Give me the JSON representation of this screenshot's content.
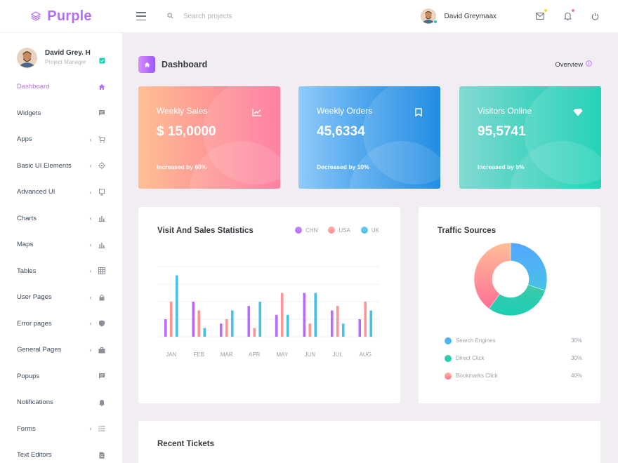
{
  "brand": {
    "name": "Purple",
    "color": "#b66dff"
  },
  "navbar": {
    "search_placeholder": "Search projects",
    "profile_name": "David Greymaax"
  },
  "sidebar": {
    "user": {
      "name": "David Grey. H",
      "role": "Project Manager"
    },
    "items": [
      {
        "label": "Dashboard",
        "icon": "home-icon",
        "arrow": false,
        "active": true
      },
      {
        "label": "Widgets",
        "icon": "chat-icon",
        "arrow": false
      },
      {
        "label": "Apps",
        "icon": "cart-icon",
        "arrow": true
      },
      {
        "label": "Basic UI Elements",
        "icon": "crosshair-icon",
        "arrow": true
      },
      {
        "label": "Advanced UI",
        "icon": "monitor-icon",
        "arrow": true
      },
      {
        "label": "Charts",
        "icon": "bar-chart-icon",
        "arrow": true
      },
      {
        "label": "Maps",
        "icon": "bar-chart-icon",
        "arrow": true
      },
      {
        "label": "Tables",
        "icon": "table-icon",
        "arrow": true
      },
      {
        "label": "User Pages",
        "icon": "lock-icon",
        "arrow": true
      },
      {
        "label": "Error pages",
        "icon": "shield-icon",
        "arrow": true
      },
      {
        "label": "General Pages",
        "icon": "briefcase-icon",
        "arrow": true
      },
      {
        "label": "Popups",
        "icon": "chat-icon",
        "arrow": false
      },
      {
        "label": "Notifications",
        "icon": "bell-icon",
        "arrow": false
      },
      {
        "label": "Forms",
        "icon": "list-icon",
        "arrow": true
      },
      {
        "label": "Text Editors",
        "icon": "document-icon",
        "arrow": false
      }
    ]
  },
  "header": {
    "title": "Dashboard",
    "overview": "Overview"
  },
  "stats": [
    {
      "title": "Weekly Sales",
      "value": "$ 15,0000",
      "note": "Increased by 60%",
      "icon": "trending-icon"
    },
    {
      "title": "Weekly Orders",
      "value": "45,6334",
      "note": "Decreased by 10%",
      "icon": "bookmark-icon"
    },
    {
      "title": "Visitors Online",
      "value": "95,5741",
      "note": "Increased by 5%",
      "icon": "diamond-icon"
    }
  ],
  "chart_data": [
    {
      "type": "bar",
      "title": "Visit And Sales Statistics",
      "categories": [
        "JAN",
        "FEB",
        "MAR",
        "APR",
        "MAY",
        "JUN",
        "JUL",
        "AUG"
      ],
      "series": [
        {
          "name": "CHN",
          "color": "#b66dff",
          "values": [
            20,
            40,
            15,
            35,
            25,
            50,
            30,
            20
          ]
        },
        {
          "name": "USA",
          "color": "#fe9496",
          "values": [
            40,
            30,
            20,
            10,
            50,
            15,
            35,
            40
          ]
        },
        {
          "name": "UK",
          "color": "#47c1e6",
          "values": [
            70,
            10,
            30,
            40,
            25,
            50,
            15,
            30
          ]
        }
      ],
      "ylim": [
        0,
        80
      ]
    },
    {
      "type": "pie",
      "title": "Traffic Sources",
      "labels": [
        "Search Engines",
        "Direct Click",
        "Bookmarks Click"
      ],
      "values": [
        30,
        30,
        40
      ],
      "display": [
        "30%",
        "30%",
        "40%"
      ],
      "colors": [
        "#47c1e6",
        "#1bcfb4",
        "#fe7096"
      ]
    }
  ],
  "tickets": {
    "title": "Recent Tickets"
  }
}
